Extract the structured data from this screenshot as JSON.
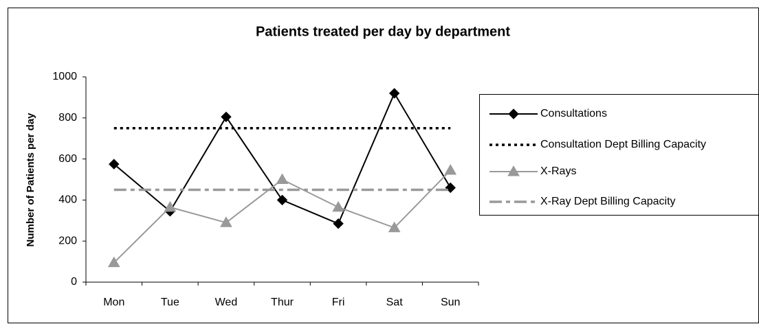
{
  "chart_data": {
    "type": "line",
    "title": "Patients treated per day by department",
    "y_label": "Number of Patients per day",
    "categories": [
      "Mon",
      "Tue",
      "Wed",
      "Thur",
      "Fri",
      "Sat",
      "Sun"
    ],
    "ylim": [
      0,
      1000
    ],
    "yticks": [
      0,
      200,
      400,
      600,
      800,
      1000
    ],
    "legend": "right",
    "series": [
      {
        "name": "Consultations",
        "color": "#000000",
        "dash": "solid",
        "marker": "diamond",
        "values": [
          575,
          345,
          805,
          400,
          285,
          920,
          460
        ]
      },
      {
        "name": "Consultation Dept Billing Capacity",
        "color": "#000000",
        "dash": "dotted",
        "marker": null,
        "values": [
          750,
          750,
          750,
          750,
          750,
          750,
          750
        ]
      },
      {
        "name": "X-Rays",
        "color": "#999999",
        "dash": "solid",
        "marker": "triangle",
        "values": [
          95,
          365,
          290,
          500,
          365,
          265,
          545
        ]
      },
      {
        "name": "X-Ray Dept Billing Capacity",
        "color": "#999999",
        "dash": "dashdot",
        "marker": null,
        "values": [
          450,
          450,
          450,
          450,
          450,
          450,
          450
        ]
      }
    ]
  }
}
